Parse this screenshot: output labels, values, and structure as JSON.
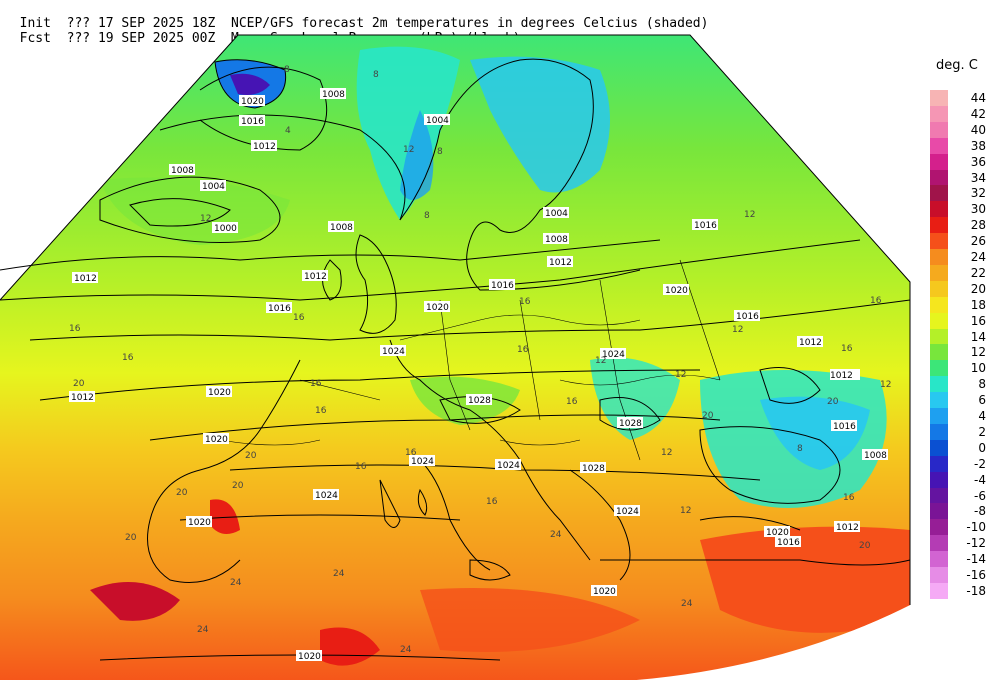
{
  "header": {
    "init_label": "Init",
    "init_run": "???",
    "init_date": "17 SEP 2025 18Z",
    "fcst_label": "Fcst",
    "fcst_run": "???",
    "fcst_date": "19 SEP 2025 00Z",
    "title_line1": "NCEP/GFS forecast 2m temperatures in degrees Celcius (shaded)",
    "title_line2": "Mean Sea-Level Pressure (hPa) (black)."
  },
  "legend": {
    "unit": "deg. C",
    "stops": [
      {
        "label": "44",
        "color": "#f7b4b4"
      },
      {
        "label": "42",
        "color": "#f596b4"
      },
      {
        "label": "40",
        "color": "#f07ab0"
      },
      {
        "label": "38",
        "color": "#e84aa8"
      },
      {
        "label": "36",
        "color": "#d4208c"
      },
      {
        "label": "34",
        "color": "#b01470"
      },
      {
        "label": "32",
        "color": "#a0144a"
      },
      {
        "label": "30",
        "color": "#c80e2a"
      },
      {
        "label": "28",
        "color": "#e81e14"
      },
      {
        "label": "26",
        "color": "#f5501a"
      },
      {
        "label": "24",
        "color": "#f58c1e"
      },
      {
        "label": "22",
        "color": "#f5aa1e"
      },
      {
        "label": "20",
        "color": "#f5c81e"
      },
      {
        "label": "18",
        "color": "#f5e61e"
      },
      {
        "label": "16",
        "color": "#e6f51e"
      },
      {
        "label": "14",
        "color": "#b4f028"
      },
      {
        "label": "12",
        "color": "#78e63c"
      },
      {
        "label": "10",
        "color": "#3ce678"
      },
      {
        "label": "8",
        "color": "#28e6c8"
      },
      {
        "label": "6",
        "color": "#28c8f0"
      },
      {
        "label": "4",
        "color": "#1ea0f0"
      },
      {
        "label": "2",
        "color": "#1478e6"
      },
      {
        "label": "0",
        "color": "#0a50d2"
      },
      {
        "label": "-2",
        "color": "#2828c8"
      },
      {
        "label": "-4",
        "color": "#4614b4"
      },
      {
        "label": "-6",
        "color": "#6414a0"
      },
      {
        "label": "-8",
        "color": "#7a1496"
      },
      {
        "label": "-10",
        "color": "#961e96"
      },
      {
        "label": "-12",
        "color": "#b43cb4"
      },
      {
        "label": "-14",
        "color": "#d264d2"
      },
      {
        "label": "-16",
        "color": "#e68ce6"
      },
      {
        "label": "-18",
        "color": "#f5aaf5"
      }
    ]
  },
  "isobars": {
    "labels": [
      "1020",
      "1008",
      "1016",
      "1012",
      "1004",
      "1008",
      "1004",
      "1000",
      "1008",
      "1012",
      "1012",
      "1016",
      "1020",
      "1024",
      "1004",
      "1008",
      "1012",
      "1016",
      "1016",
      "1020",
      "1024",
      "1028",
      "1028",
      "1016",
      "1012",
      "1012",
      "1016",
      "1020",
      "1020",
      "1020",
      "1024",
      "1024",
      "1024",
      "1024",
      "1028",
      "1008",
      "1020",
      "1016",
      "1012",
      "1012",
      "1020",
      "1020"
    ]
  },
  "temp_labels": {
    "labels": [
      "8",
      "8",
      "12",
      "8",
      "12",
      "4",
      "8",
      "12",
      "16",
      "16",
      "16",
      "16",
      "20",
      "16",
      "16",
      "16",
      "16",
      "20",
      "20",
      "20",
      "16",
      "20",
      "24",
      "24",
      "24",
      "24",
      "12",
      "12",
      "16",
      "12",
      "8",
      "16",
      "20",
      "12",
      "16",
      "20",
      "16",
      "16",
      "12",
      "12",
      "24",
      "20",
      "24"
    ]
  }
}
